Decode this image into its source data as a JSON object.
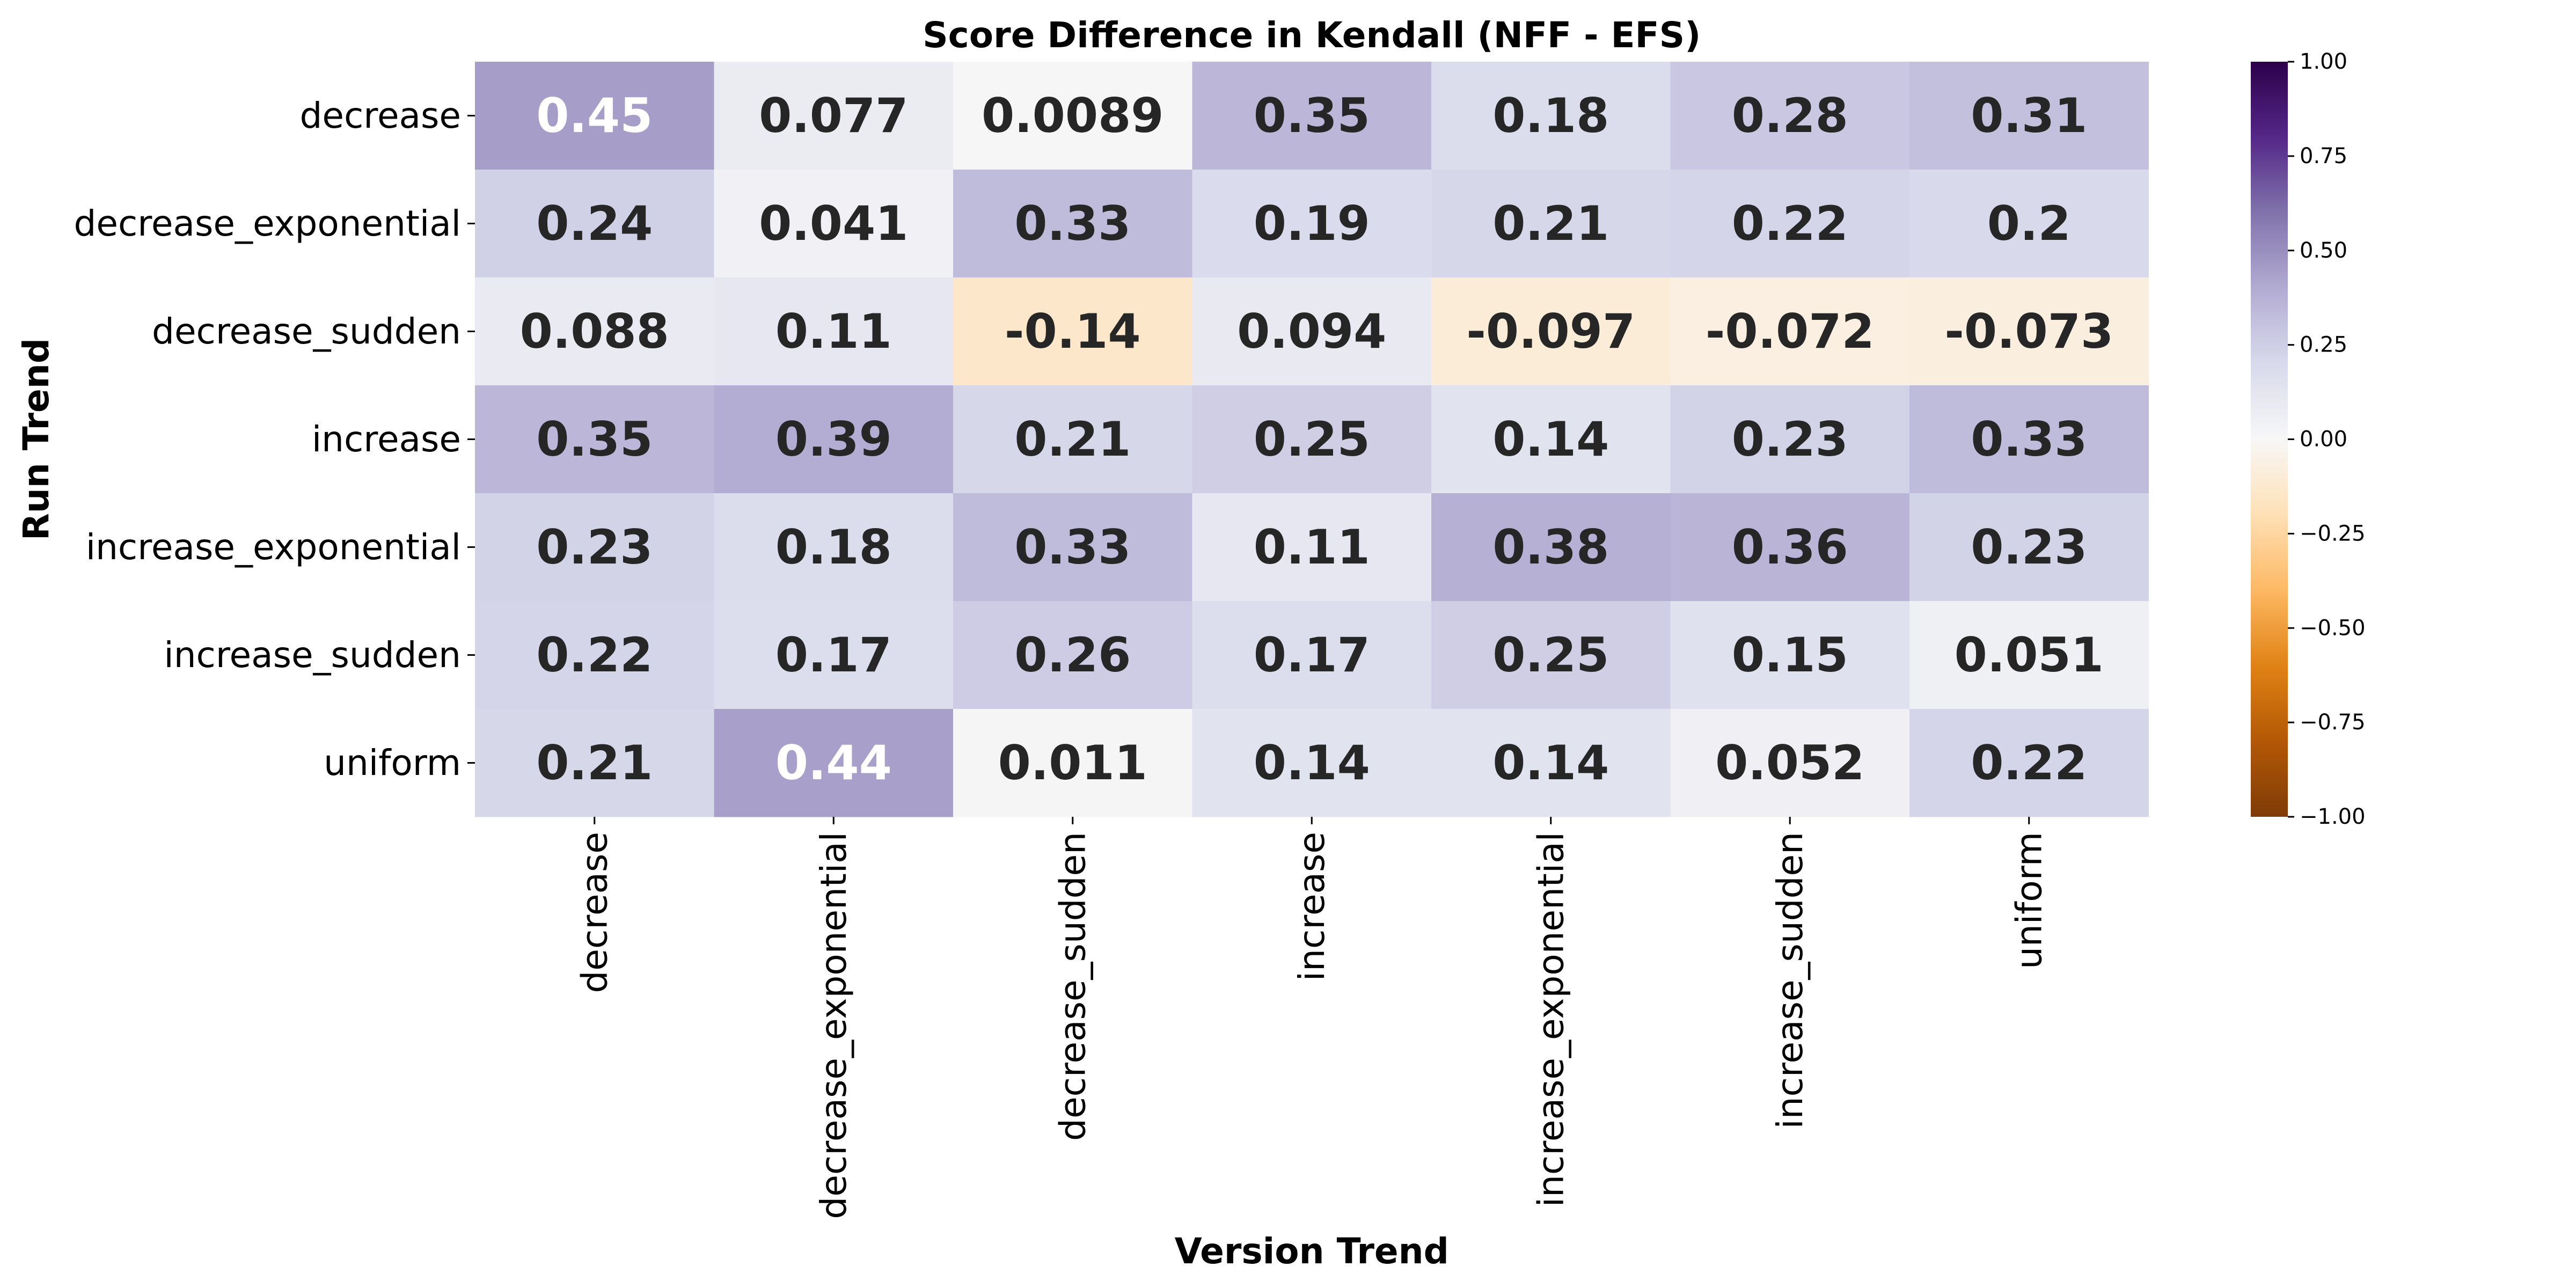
{
  "chart_data": {
    "type": "heatmap",
    "title": "Score Difference in Kendall (NFF - EFS)",
    "xlabel": "Version Trend",
    "ylabel": "Run Trend",
    "x_categories": [
      "decrease",
      "decrease_exponential",
      "decrease_sudden",
      "increase",
      "increase_exponential",
      "increase_sudden",
      "uniform"
    ],
    "y_categories": [
      "decrease",
      "decrease_exponential",
      "decrease_sudden",
      "increase",
      "increase_exponential",
      "increase_sudden",
      "uniform"
    ],
    "values": [
      [
        0.45,
        0.077,
        0.0089,
        0.35,
        0.18,
        0.28,
        0.31
      ],
      [
        0.24,
        0.041,
        0.33,
        0.19,
        0.21,
        0.22,
        0.2
      ],
      [
        0.088,
        0.11,
        -0.14,
        0.094,
        -0.097,
        -0.072,
        -0.073
      ],
      [
        0.35,
        0.39,
        0.21,
        0.25,
        0.14,
        0.23,
        0.33
      ],
      [
        0.23,
        0.18,
        0.33,
        0.11,
        0.38,
        0.36,
        0.23
      ],
      [
        0.22,
        0.17,
        0.26,
        0.17,
        0.25,
        0.15,
        0.051
      ],
      [
        0.21,
        0.44,
        0.011,
        0.14,
        0.14,
        0.052,
        0.22
      ]
    ],
    "annotations": [
      [
        "0.45",
        "0.077",
        "0.0089",
        "0.35",
        "0.18",
        "0.28",
        "0.31"
      ],
      [
        "0.24",
        "0.041",
        "0.33",
        "0.19",
        "0.21",
        "0.22",
        "0.2"
      ],
      [
        "0.088",
        "0.11",
        "-0.14",
        "0.094",
        "-0.097",
        "-0.072",
        "-0.073"
      ],
      [
        "0.35",
        "0.39",
        "0.21",
        "0.25",
        "0.14",
        "0.23",
        "0.33"
      ],
      [
        "0.23",
        "0.18",
        "0.33",
        "0.11",
        "0.38",
        "0.36",
        "0.23"
      ],
      [
        "0.22",
        "0.17",
        "0.26",
        "0.17",
        "0.25",
        "0.15",
        "0.051"
      ],
      [
        "0.21",
        "0.44",
        "0.011",
        "0.14",
        "0.14",
        "0.052",
        "0.22"
      ]
    ],
    "colormap": "PuOr",
    "vmin": -1.0,
    "vmax": 1.0,
    "colorbar_ticks": [
      1.0,
      0.75,
      0.5,
      0.25,
      0.0,
      -0.25,
      -0.5,
      -0.75,
      -1.0
    ],
    "colorbar_tick_labels": [
      "1.00",
      "0.75",
      "0.50",
      "0.25",
      "0.00",
      "−0.25",
      "−0.50",
      "−0.75",
      "−1.00"
    ],
    "colors": {
      "dark_text": "#262626",
      "light_text": "#ffffff"
    }
  }
}
